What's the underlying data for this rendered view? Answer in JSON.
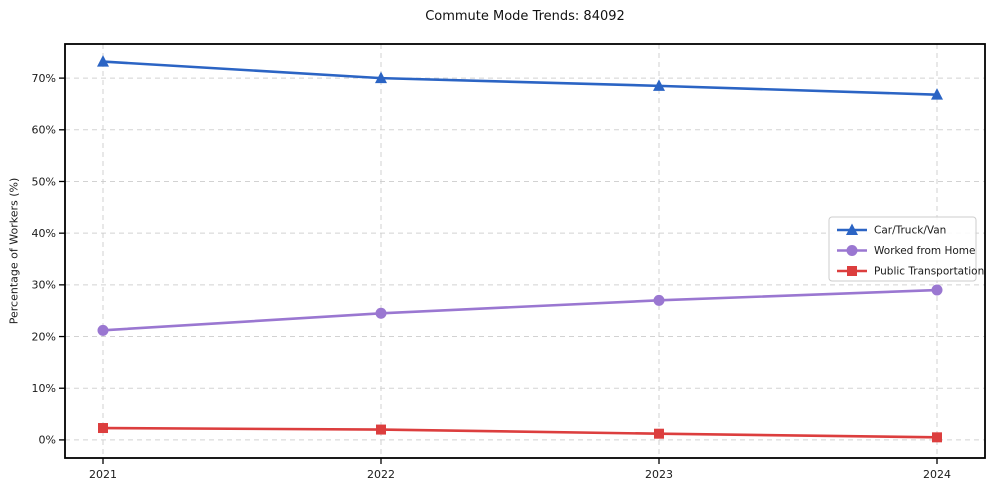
{
  "chart_data": {
    "type": "line",
    "title": "Commute Mode Trends: 84092",
    "xlabel": "",
    "ylabel": "Percentage of Workers (%)",
    "categories": [
      "2021",
      "2022",
      "2023",
      "2024"
    ],
    "series": [
      {
        "name": "Car/Truck/Van",
        "color": "#2b64c4",
        "marker": "triangle",
        "values": [
          73.2,
          70.0,
          68.5,
          66.8
        ]
      },
      {
        "name": "Worked from Home",
        "color": "#9a77d1",
        "marker": "circle",
        "values": [
          21.2,
          24.5,
          27.0,
          29.0
        ]
      },
      {
        "name": "Public Transportation",
        "color": "#dc3e3e",
        "marker": "square",
        "values": [
          2.3,
          2.0,
          1.2,
          0.5
        ]
      }
    ],
    "y_ticks": [
      "0%",
      "10%",
      "20%",
      "30%",
      "40%",
      "50%",
      "60%",
      "70%"
    ],
    "y_tick_values": [
      0,
      10,
      20,
      30,
      40,
      50,
      60,
      70
    ],
    "ylim": [
      -3.5,
      76.6
    ],
    "grid": true,
    "grid_style": "dashed",
    "legend_position": "right-center",
    "legend_entries": [
      "Car/Truck/Van",
      "Worked from Home",
      "Public Transportation"
    ]
  }
}
